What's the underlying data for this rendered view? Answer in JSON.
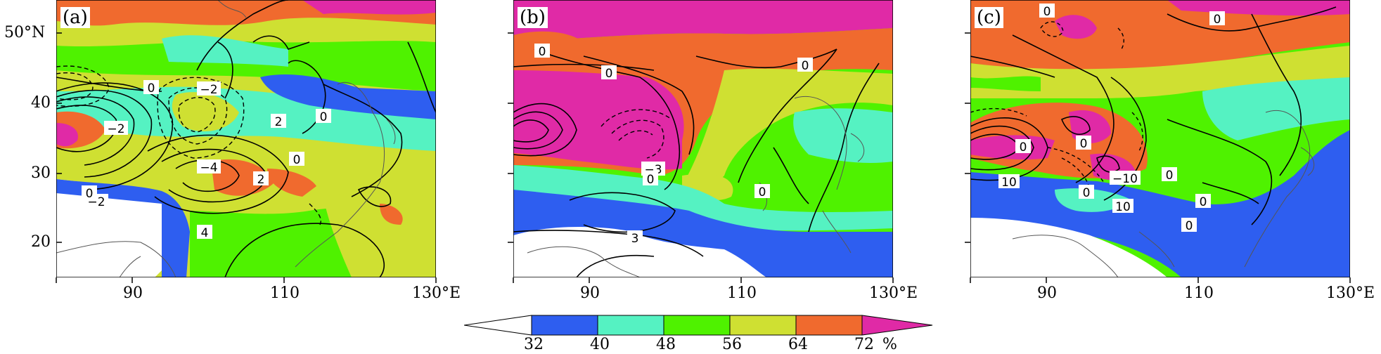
{
  "colors": {
    "below32": "#ffffff",
    "c32_40": "#2e5ef0",
    "c40_48": "#55f2c2",
    "c48_56": "#4ff200",
    "c56_64": "#cfe032",
    "c64_72": "#f06a2e",
    "above72": "#e02aa6"
  },
  "panels": [
    {
      "label": "(a)",
      "contour_labels": [
        "0",
        "−2",
        "−2",
        "2",
        "0",
        "0",
        "−4",
        "2",
        "−2",
        "4",
        "0"
      ]
    },
    {
      "label": "(b)",
      "contour_labels": [
        "0",
        "0",
        "0",
        "−3",
        "0",
        "0",
        "3"
      ]
    },
    {
      "label": "(c)",
      "contour_labels": [
        "0",
        "0",
        "0",
        "0",
        "10",
        "0",
        "−10",
        "0",
        "10",
        "0",
        "0"
      ]
    }
  ],
  "axes": {
    "y_ticks": [
      "50°N",
      "40",
      "30",
      "20"
    ],
    "x_ticks": [
      "90",
      "110",
      "130°E"
    ]
  },
  "colorbar": {
    "ticks": [
      "32",
      "40",
      "48",
      "56",
      "64",
      "72"
    ],
    "unit": "%"
  }
}
